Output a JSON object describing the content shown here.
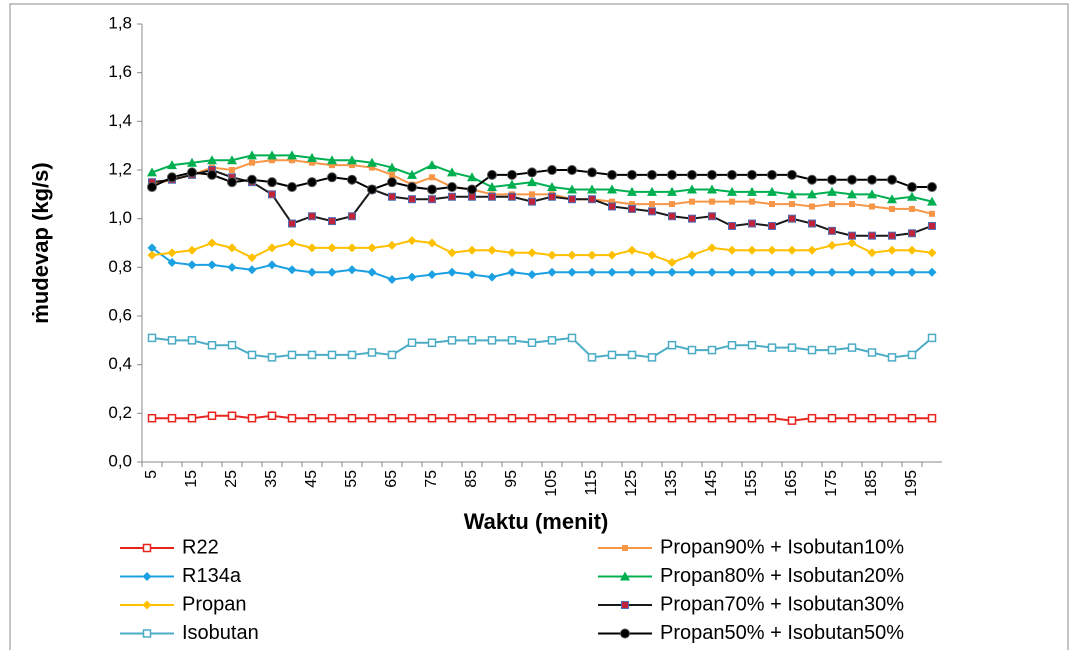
{
  "chart_data": {
    "type": "line",
    "ylabel": "ṁudevap (kg/s)",
    "xlabel": "Waktu (menit)",
    "categories": [
      "5",
      null,
      "15",
      null,
      "25",
      null,
      "35",
      null,
      "45",
      null,
      "55",
      null,
      "65",
      null,
      "75",
      null,
      "85",
      null,
      "95",
      null,
      "105",
      null,
      "115",
      null,
      "125",
      null,
      "135",
      null,
      "145",
      null,
      "155",
      null,
      "165",
      null,
      "175",
      null,
      "185",
      null,
      "195",
      null
    ],
    "ylim": [
      0,
      1.8
    ],
    "yticks": [
      {
        "value": 0,
        "label": "0,0"
      },
      {
        "value": 0.2,
        "label": "0,2"
      },
      {
        "value": 0.4,
        "label": "0,4"
      },
      {
        "value": 0.6,
        "label": "0,6"
      },
      {
        "value": 0.8,
        "label": "0,8"
      },
      {
        "value": 1.0,
        "label": "1,0"
      },
      {
        "value": 1.2,
        "label": "1,2"
      },
      {
        "value": 1.4,
        "label": "1,4"
      },
      {
        "value": 1.6,
        "label": "1,6"
      },
      {
        "value": 1.8,
        "label": "1,8"
      }
    ],
    "series": [
      {
        "name": "R22",
        "color": "#e8241e",
        "marker": "square-open",
        "values": [
          0.18,
          0.18,
          0.18,
          0.19,
          0.19,
          0.18,
          0.19,
          0.18,
          0.18,
          0.18,
          0.18,
          0.18,
          0.18,
          0.18,
          0.18,
          0.18,
          0.18,
          0.18,
          0.18,
          0.18,
          0.18,
          0.18,
          0.18,
          0.18,
          0.18,
          0.18,
          0.18,
          0.18,
          0.18,
          0.18,
          0.18,
          0.18,
          0.17,
          0.18,
          0.18,
          0.18,
          0.18,
          0.18,
          0.18,
          0.18
        ]
      },
      {
        "name": "R134a",
        "color": "#1ba1e2",
        "marker": "diamond",
        "values": [
          0.88,
          0.82,
          0.81,
          0.81,
          0.8,
          0.79,
          0.81,
          0.79,
          0.78,
          0.78,
          0.79,
          0.78,
          0.75,
          0.76,
          0.77,
          0.78,
          0.77,
          0.76,
          0.78,
          0.77,
          0.78,
          0.78,
          0.78,
          0.78,
          0.78,
          0.78,
          0.78,
          0.78,
          0.78,
          0.78,
          0.78,
          0.78,
          0.78,
          0.78,
          0.78,
          0.78,
          0.78,
          0.78,
          0.78,
          0.78
        ]
      },
      {
        "name": "Propan",
        "color": "#ffc000",
        "marker": "diamond",
        "values": [
          0.85,
          0.86,
          0.87,
          0.9,
          0.88,
          0.84,
          0.88,
          0.9,
          0.88,
          0.88,
          0.88,
          0.88,
          0.89,
          0.91,
          0.9,
          0.86,
          0.87,
          0.87,
          0.86,
          0.86,
          0.85,
          0.85,
          0.85,
          0.85,
          0.87,
          0.85,
          0.82,
          0.85,
          0.88,
          0.87,
          0.87,
          0.87,
          0.87,
          0.87,
          0.89,
          0.9,
          0.86,
          0.87,
          0.87,
          0.86
        ]
      },
      {
        "name": "Isobutan",
        "color": "#4bacc6",
        "marker": "square-open",
        "values": [
          0.51,
          0.5,
          0.5,
          0.48,
          0.48,
          0.44,
          0.43,
          0.44,
          0.44,
          0.44,
          0.44,
          0.45,
          0.44,
          0.49,
          0.49,
          0.5,
          0.5,
          0.5,
          0.5,
          0.49,
          0.5,
          0.51,
          0.43,
          0.44,
          0.44,
          0.43,
          0.48,
          0.46,
          0.46,
          0.48,
          0.48,
          0.47,
          0.47,
          0.46,
          0.46,
          0.47,
          0.45,
          0.43,
          0.44,
          0.51
        ]
      },
      {
        "name": "Propan90% + Isobutan10%",
        "color": "#f79646",
        "marker": "square",
        "values": [
          1.14,
          1.16,
          1.18,
          1.21,
          1.2,
          1.23,
          1.24,
          1.24,
          1.23,
          1.22,
          1.22,
          1.21,
          1.18,
          1.14,
          1.17,
          1.13,
          1.12,
          1.1,
          1.1,
          1.1,
          1.1,
          1.08,
          1.08,
          1.07,
          1.06,
          1.06,
          1.06,
          1.07,
          1.07,
          1.07,
          1.07,
          1.06,
          1.06,
          1.05,
          1.06,
          1.06,
          1.05,
          1.04,
          1.04,
          1.02
        ]
      },
      {
        "name": "Propan80% + Isobutan20%",
        "color": "#00b050",
        "marker": "triangle",
        "values": [
          1.19,
          1.22,
          1.23,
          1.24,
          1.24,
          1.26,
          1.26,
          1.26,
          1.25,
          1.24,
          1.24,
          1.23,
          1.21,
          1.18,
          1.22,
          1.19,
          1.17,
          1.13,
          1.14,
          1.15,
          1.13,
          1.12,
          1.12,
          1.12,
          1.11,
          1.11,
          1.11,
          1.12,
          1.12,
          1.11,
          1.11,
          1.11,
          1.1,
          1.1,
          1.11,
          1.1,
          1.1,
          1.08,
          1.09,
          1.07
        ]
      },
      {
        "name": "Propan70% + Isobutan30%",
        "color": "#1a1a1a",
        "marker": "square-red",
        "values": [
          1.15,
          1.16,
          1.18,
          1.2,
          1.17,
          1.15,
          1.1,
          0.98,
          1.01,
          0.99,
          1.01,
          1.12,
          1.09,
          1.08,
          1.08,
          1.09,
          1.09,
          1.09,
          1.09,
          1.07,
          1.09,
          1.08,
          1.08,
          1.05,
          1.04,
          1.03,
          1.01,
          1.0,
          1.01,
          0.97,
          0.98,
          0.97,
          1.0,
          0.98,
          0.95,
          0.93,
          0.93,
          0.93,
          0.94,
          0.97
        ]
      },
      {
        "name": "Propan50% + Isobutan50%",
        "color": "#000000",
        "marker": "circle",
        "values": [
          1.13,
          1.17,
          1.19,
          1.18,
          1.15,
          1.16,
          1.15,
          1.13,
          1.15,
          1.17,
          1.16,
          1.12,
          1.15,
          1.13,
          1.12,
          1.13,
          1.12,
          1.18,
          1.18,
          1.19,
          1.2,
          1.2,
          1.19,
          1.18,
          1.18,
          1.18,
          1.18,
          1.18,
          1.18,
          1.18,
          1.18,
          1.18,
          1.18,
          1.16,
          1.16,
          1.16,
          1.16,
          1.16,
          1.13,
          1.13
        ]
      }
    ]
  }
}
